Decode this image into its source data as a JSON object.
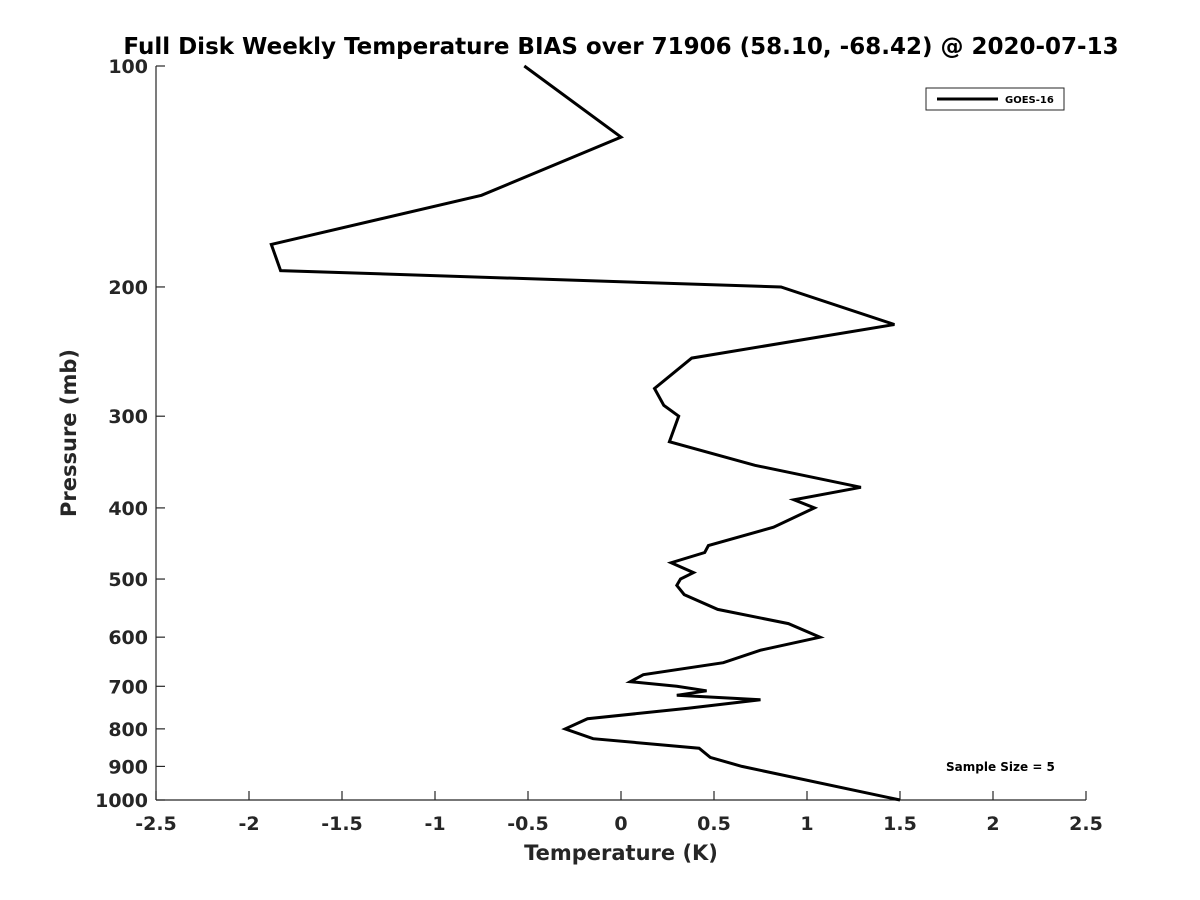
{
  "chart_data": {
    "type": "line",
    "title": "Full Disk Weekly Temperature BIAS over 71906 (58.10, -68.42) @ 2020-07-13",
    "xlabel": "Temperature (K)",
    "ylabel": "Pressure (mb)",
    "xlim": [
      -2.5,
      2.5
    ],
    "ylim": [
      100,
      1000
    ],
    "y_scale": "log",
    "y_reversed": true,
    "grid": false,
    "legend_position": "top-right",
    "xticks": [
      -2.5,
      -2,
      -1.5,
      -1,
      -0.5,
      0,
      0.5,
      1,
      1.5,
      2,
      2.5
    ],
    "xtick_labels": [
      "-2.5",
      "-2",
      "-1.5",
      "-1",
      "-0.5",
      "0",
      "0.5",
      "1",
      "1.5",
      "2",
      "2.5"
    ],
    "yticks": [
      100,
      200,
      300,
      400,
      500,
      600,
      700,
      800,
      900,
      1000
    ],
    "ytick_labels": [
      "100",
      "200",
      "300",
      "400",
      "500",
      "600",
      "700",
      "800",
      "900",
      "1000"
    ],
    "annotation": "Sample Size = 5",
    "series": [
      {
        "name": "GOES-16",
        "color": "#000000",
        "points": [
          {
            "t": -0.52,
            "p": 100
          },
          {
            "t": 0.0,
            "p": 125
          },
          {
            "t": -0.75,
            "p": 150
          },
          {
            "t": -1.88,
            "p": 175
          },
          {
            "t": -1.83,
            "p": 190
          },
          {
            "t": 0.86,
            "p": 200
          },
          {
            "t": 1.47,
            "p": 225
          },
          {
            "t": 0.38,
            "p": 250
          },
          {
            "t": 0.18,
            "p": 275
          },
          {
            "t": 0.23,
            "p": 290
          },
          {
            "t": 0.31,
            "p": 300
          },
          {
            "t": 0.26,
            "p": 325
          },
          {
            "t": 0.72,
            "p": 350
          },
          {
            "t": 1.29,
            "p": 375
          },
          {
            "t": 0.93,
            "p": 390
          },
          {
            "t": 1.04,
            "p": 400
          },
          {
            "t": 0.82,
            "p": 425
          },
          {
            "t": 0.47,
            "p": 450
          },
          {
            "t": 0.45,
            "p": 460
          },
          {
            "t": 0.27,
            "p": 475
          },
          {
            "t": 0.39,
            "p": 490
          },
          {
            "t": 0.32,
            "p": 500
          },
          {
            "t": 0.3,
            "p": 510
          },
          {
            "t": 0.34,
            "p": 525
          },
          {
            "t": 0.52,
            "p": 550
          },
          {
            "t": 0.9,
            "p": 575
          },
          {
            "t": 1.07,
            "p": 600
          },
          {
            "t": 0.75,
            "p": 625
          },
          {
            "t": 0.55,
            "p": 650
          },
          {
            "t": 0.12,
            "p": 675
          },
          {
            "t": 0.05,
            "p": 690
          },
          {
            "t": 0.3,
            "p": 700
          },
          {
            "t": 0.46,
            "p": 710
          },
          {
            "t": 0.3,
            "p": 720
          },
          {
            "t": 0.75,
            "p": 730
          },
          {
            "t": 0.36,
            "p": 750
          },
          {
            "t": -0.18,
            "p": 775
          },
          {
            "t": -0.3,
            "p": 800
          },
          {
            "t": -0.15,
            "p": 825
          },
          {
            "t": 0.42,
            "p": 850
          },
          {
            "t": 0.48,
            "p": 875
          },
          {
            "t": 0.65,
            "p": 900
          },
          {
            "t": 1.5,
            "p": 1000
          }
        ]
      }
    ]
  }
}
